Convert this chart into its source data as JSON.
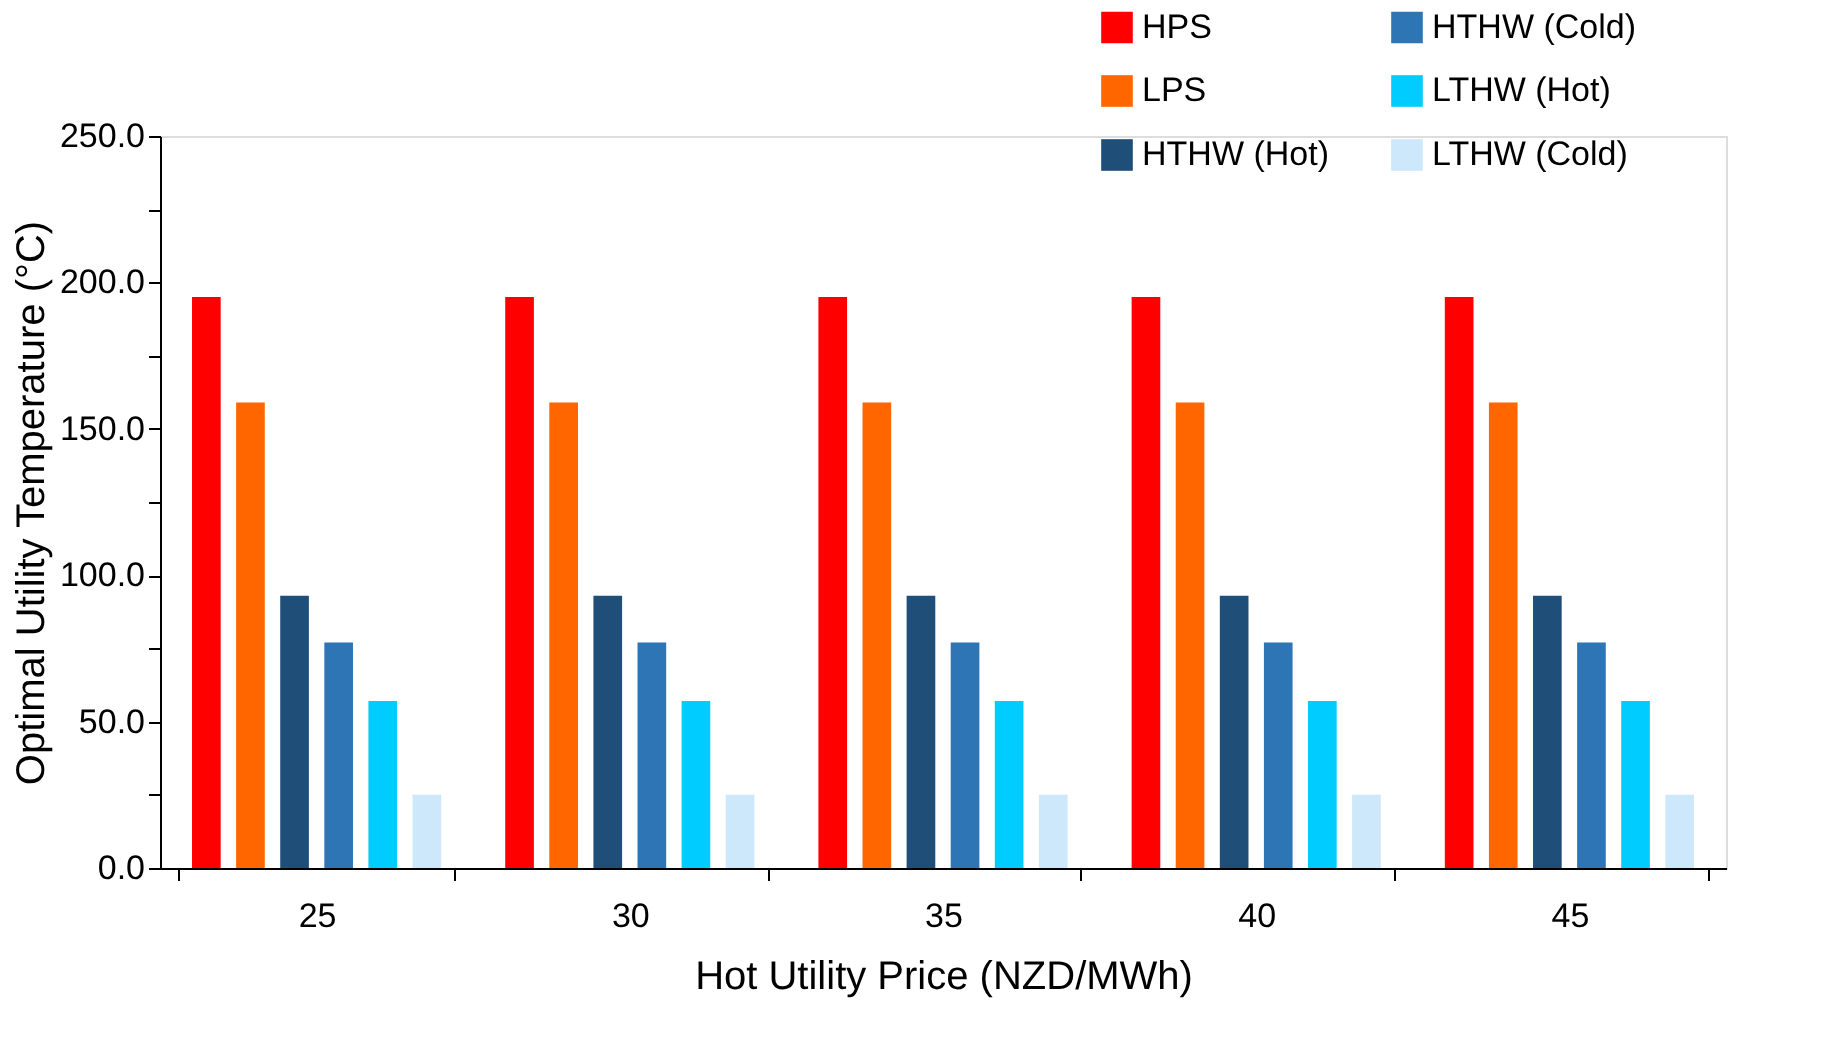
{
  "chart_data": {
    "type": "bar",
    "xlabel": "Hot Utility Price (NZD/MWh)",
    "ylabel": "Optimal Utility Temperature (°C)",
    "categories": [
      "25",
      "30",
      "35",
      "40",
      "45"
    ],
    "series": [
      {
        "name": "HPS",
        "color": "#ff0000",
        "values": [
          195,
          195,
          195,
          195,
          195
        ]
      },
      {
        "name": "LPS",
        "color": "#ff6600",
        "values": [
          159,
          159,
          159,
          159,
          159
        ]
      },
      {
        "name": "HTHW (Hot)",
        "color": "#1f4e79",
        "values": [
          93,
          93,
          93,
          93,
          93
        ]
      },
      {
        "name": "HTHW (Cold)",
        "color": "#2e75b6",
        "values": [
          77,
          77,
          77,
          77,
          77
        ]
      },
      {
        "name": "LTHW (Hot)",
        "color": "#00ccff",
        "values": [
          57,
          57,
          57,
          57,
          57
        ]
      },
      {
        "name": "LTHW (Cold)",
        "color": "#cce8fa",
        "values": [
          25,
          25,
          25,
          25,
          25
        ]
      }
    ],
    "ylim": [
      0,
      250
    ],
    "yticks": [
      {
        "value": 0,
        "label": "0.0"
      },
      {
        "value": 25,
        "label": null
      },
      {
        "value": 50,
        "label": "50.0"
      },
      {
        "value": 75,
        "label": null
      },
      {
        "value": 100,
        "label": "100.0"
      },
      {
        "value": 125,
        "label": null
      },
      {
        "value": 150,
        "label": "150.0"
      },
      {
        "value": 175,
        "label": null
      },
      {
        "value": 200,
        "label": "200.0"
      },
      {
        "value": 225,
        "label": null
      },
      {
        "value": 250,
        "label": "250.0"
      }
    ],
    "grid": false,
    "legend": "top right"
  }
}
